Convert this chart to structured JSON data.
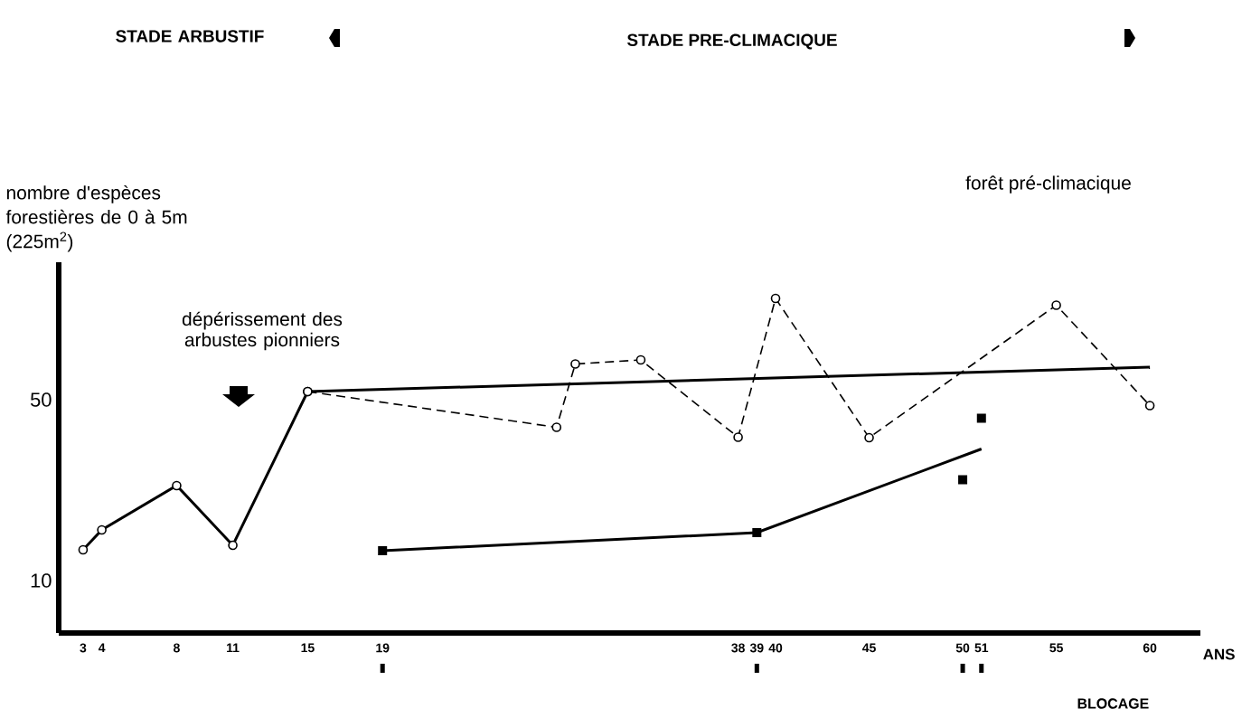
{
  "chart_data": {
    "type": "line",
    "xlabel": "ANS",
    "ylabel": "nombre d'espèces forestières de 0 à 5m (225m$^{2}$)",
    "xlim": [
      1.7,
      62.7
    ],
    "ylim": [
      -1.6,
      80.4
    ],
    "xticks": [
      3,
      4,
      8,
      11,
      15,
      19,
      38,
      39,
      40,
      45,
      50,
      51,
      55,
      60
    ],
    "yticks": [
      10,
      50
    ],
    "annotations": [
      "STADE ARBUSTIF",
      "STADE PRE-CLIMACIQUE",
      "dépérissement des arbustes pionniers",
      "forêt pré-climacique",
      "BLOCAGE"
    ],
    "series": [
      {
        "color": "#000000",
        "marker": "circle",
        "line_style": "solid",
        "x": [
          3,
          4,
          8,
          11,
          15
        ],
        "values": [
          16.8,
          21.2,
          31,
          17.8,
          51.8
        ]
      },
      {
        "color": "#000000",
        "marker": "circle",
        "line_style": "dashed",
        "x": [
          15,
          28.3,
          29.3,
          32.8,
          38,
          40,
          45,
          55,
          60
        ],
        "values": [
          51.8,
          43.9,
          57.9,
          58.8,
          41.7,
          72.4,
          41.6,
          70.9,
          48.7
        ]
      },
      {
        "color": "#000000",
        "marker": "none",
        "line_style": "solid",
        "x": [
          15,
          60
        ],
        "values": [
          51.8,
          57.2
        ]
      },
      {
        "color": "#000000",
        "marker": "none",
        "line_style": "solid",
        "x": [
          19,
          39,
          51
        ],
        "values": [
          16.6,
          20.6,
          39.1
        ]
      },
      {
        "type": "scatter",
        "color": "#000000",
        "marker": "square",
        "x": [
          19,
          39,
          50,
          51
        ],
        "values": [
          16.6,
          20.6,
          32.3,
          45.9
        ]
      }
    ]
  }
}
